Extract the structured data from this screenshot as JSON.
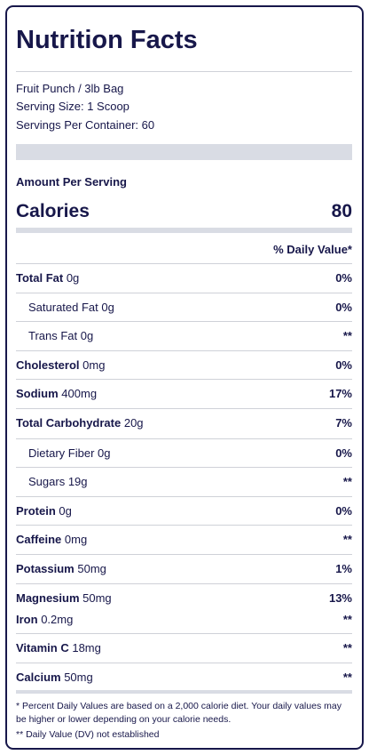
{
  "title": "Nutrition Facts",
  "product": "Fruit Punch / 3lb Bag",
  "serving_size": "Serving Size: 1 Scoop",
  "servings_per_container": "Servings Per Container: 60",
  "amount_per_serving": "Amount Per Serving",
  "calories_label": "Calories",
  "calories_value": "80",
  "daily_value_header": "% Daily Value*",
  "rows": [
    {
      "name": "Total Fat",
      "amount": "0g",
      "dv": "0%",
      "indented": false
    },
    {
      "name": "Saturated Fat",
      "amount": "0g",
      "dv": "0%",
      "indented": true
    },
    {
      "name": "Trans Fat",
      "amount": "0g",
      "dv": "**",
      "indented": true
    },
    {
      "name": "Cholesterol",
      "amount": "0mg",
      "dv": "0%",
      "indented": false
    },
    {
      "name": "Sodium",
      "amount": "400mg",
      "dv": "17%",
      "indented": false
    },
    {
      "name": "Total Carbohydrate",
      "amount": "20g",
      "dv": "7%",
      "indented": false
    },
    {
      "name": "Dietary Fiber",
      "amount": "0g",
      "dv": "0%",
      "indented": true
    },
    {
      "name": "Sugars",
      "amount": "19g",
      "dv": "**",
      "indented": true
    },
    {
      "name": "Protein",
      "amount": "0g",
      "dv": "0%",
      "indented": false
    },
    {
      "name": "Caffeine",
      "amount": "0mg",
      "dv": "**",
      "indented": false
    },
    {
      "name": "Potassium",
      "amount": "50mg",
      "dv": "1%",
      "indented": false
    },
    {
      "name": "Magnesium",
      "amount": "50mg",
      "dv": "13%",
      "indented": false
    },
    {
      "name": "Iron",
      "amount": "0.2mg",
      "dv": "**",
      "indented": false
    },
    {
      "name": "Vitamin C",
      "amount": "18mg",
      "dv": "**",
      "indented": false
    },
    {
      "name": "Calcium",
      "amount": "50mg",
      "dv": "**",
      "indented": false
    }
  ],
  "footnotes": [
    "* Percent Daily Values are based on a 2,000 calorie diet. Your daily values may be higher or lower depending on your calorie needs.",
    "** Daily Value (DV) not established"
  ]
}
